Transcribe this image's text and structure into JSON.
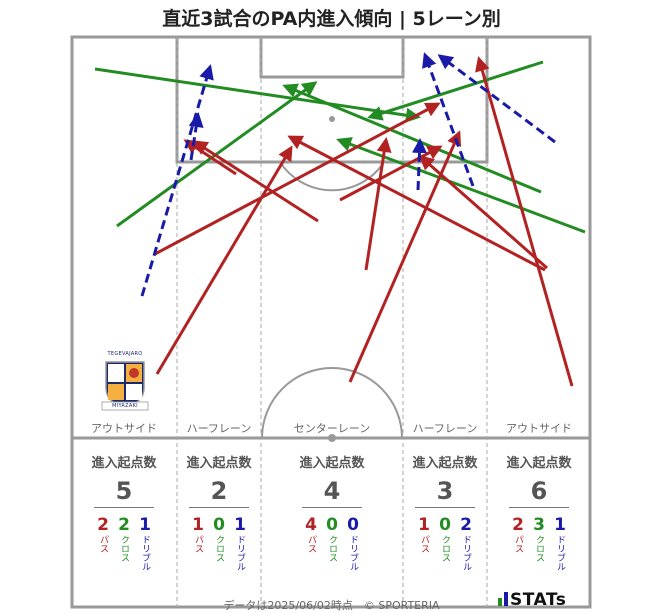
{
  "title": "直近3試合のPA内進入傾向 | 5レーン別",
  "lanes": [
    {
      "name": "アウトサイド",
      "header": "進入起点数",
      "total": "5",
      "pass": "2",
      "cross": "2",
      "dribble": "1"
    },
    {
      "name": "ハーフレーン",
      "header": "進入起点数",
      "total": "2",
      "pass": "1",
      "cross": "0",
      "dribble": "1"
    },
    {
      "name": "センターレーン",
      "header": "進入起点数",
      "total": "4",
      "pass": "4",
      "cross": "0",
      "dribble": "0"
    },
    {
      "name": "ハーフレーン",
      "header": "進入起点数",
      "total": "3",
      "pass": "1",
      "cross": "0",
      "dribble": "2"
    },
    {
      "name": "アウトサイド",
      "header": "進入起点数",
      "total": "6",
      "pass": "2",
      "cross": "3",
      "dribble": "1"
    }
  ],
  "labels": {
    "pass": "パス",
    "cross": "クロス",
    "dribble": "ドリブル"
  },
  "colors": {
    "pass": "#b22222",
    "cross": "#228b22",
    "dribble": "#1a1aa8"
  },
  "badge": {
    "top_text": "TEGEVAJARO",
    "bottom_text": "MIYAZAKI"
  },
  "footer": "データは2025/06/02時点　© SPORTERIA",
  "logo": "STATs"
}
